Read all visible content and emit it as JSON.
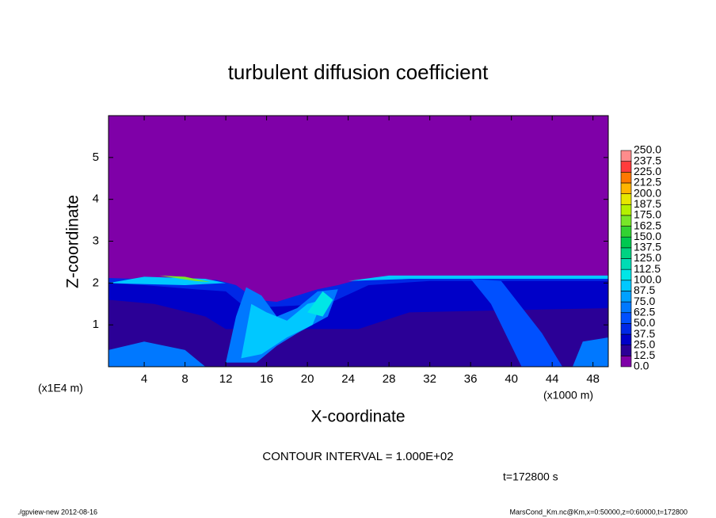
{
  "chart_data": {
    "type": "contour",
    "title": "turbulent diffusion coefficient",
    "xlabel": "X-coordinate",
    "ylabel": "Z-coordinate",
    "y_unit_label": "(x1E4 m)",
    "x_unit_label": "(x1000 m)",
    "contour_interval": "CONTOUR INTERVAL = 1.000E+02",
    "time_label": "t=172800 s",
    "footer_left": "./gpview-new  2012-08-16",
    "footer_right": "MarsCond_Km.nc@Km,x=0:50000,z=0:60000,t=172800",
    "xlim": [
      0.5,
      49.5
    ],
    "xticks": [
      4,
      8,
      12,
      16,
      20,
      24,
      28,
      32,
      36,
      40,
      44,
      48
    ],
    "ylim": [
      0,
      6
    ],
    "yticks": [
      1,
      2,
      3,
      4,
      5
    ],
    "colorbar": {
      "levels": [
        {
          "value": 0,
          "label": "0.0"
        },
        12.5,
        {
          "value": 25,
          "label": "25.0"
        },
        37.5,
        {
          "value": 50,
          "label": "50.0"
        },
        62.5,
        {
          "value": 75,
          "label": "75.0"
        },
        87.5,
        {
          "value": 100,
          "label": "100.0"
        },
        112.5,
        {
          "value": 125,
          "label": "125.0"
        },
        137.5,
        {
          "value": 150,
          "label": "150.0"
        },
        162.5,
        {
          "value": 175,
          "label": "175.0"
        },
        187.5,
        {
          "value": 200,
          "label": "200.0"
        },
        212.5,
        {
          "value": 225,
          "label": "225.0"
        },
        237.5,
        {
          "value": 250,
          "label": "250.0"
        }
      ],
      "colors": [
        "#7f00a8",
        "#2b0096",
        "#0000c8",
        "#0028e6",
        "#0050ff",
        "#0078ff",
        "#00a0ff",
        "#00c8ff",
        "#00e6e6",
        "#00dcb4",
        "#00d282",
        "#00c850",
        "#32d232",
        "#78e628",
        "#b4f000",
        "#e6e600",
        "#ffb400",
        "#ff7800",
        "#ff3c3c",
        "#ff8c8c"
      ]
    }
  }
}
